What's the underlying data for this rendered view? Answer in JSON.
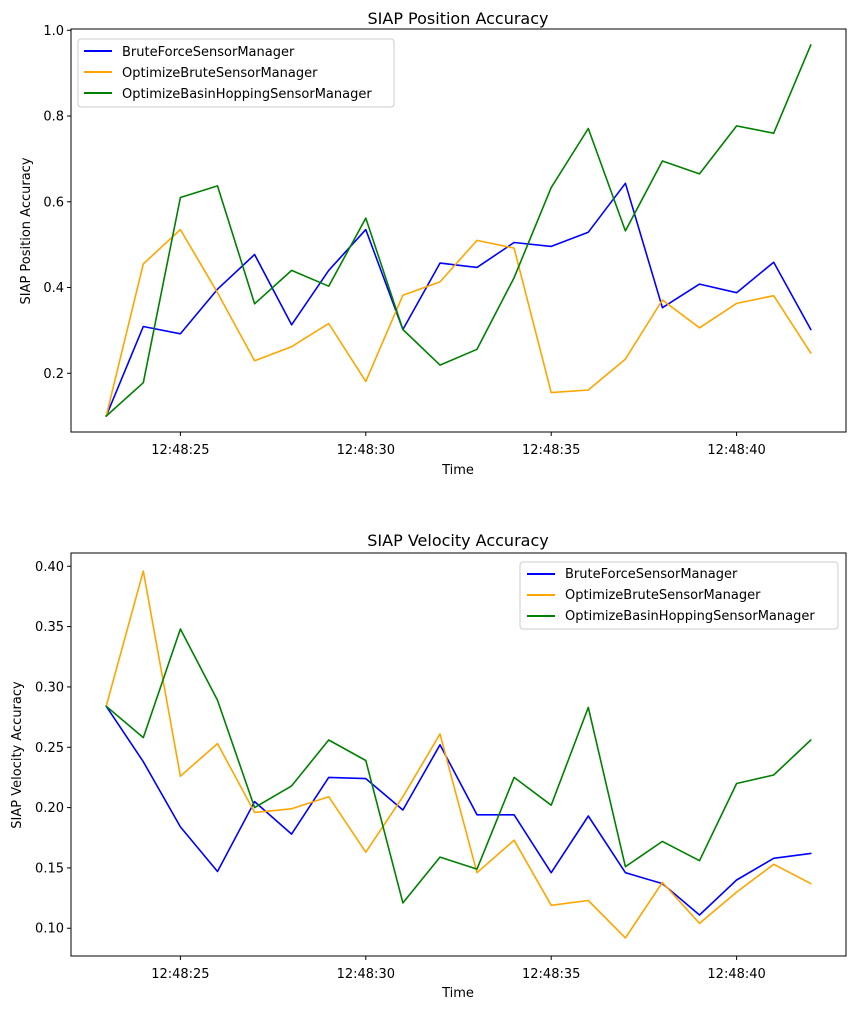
{
  "chart_data": [
    {
      "type": "line",
      "title": "SIAP Position Accuracy",
      "xlabel": "Time",
      "ylabel": "SIAP Position Accuracy",
      "x": [
        "12:48:23",
        "12:48:24",
        "12:48:25",
        "12:48:26",
        "12:48:27",
        "12:48:28",
        "12:48:29",
        "12:48:30",
        "12:48:31",
        "12:48:32",
        "12:48:33",
        "12:48:34",
        "12:48:35",
        "12:48:36",
        "12:48:37",
        "12:48:38",
        "12:48:39",
        "12:48:40",
        "12:48:41",
        "12:48:42"
      ],
      "xticks": [
        "12:48:25",
        "12:48:30",
        "12:48:35",
        "12:48:40"
      ],
      "xlim": [
        "12:48:22.05",
        "12:48:42.95"
      ],
      "ylim": [
        0.063,
        1.003
      ],
      "yticks": [
        0.2,
        0.4,
        0.6,
        0.8,
        1.0
      ],
      "yticklabels": [
        "0.2",
        "0.4",
        "0.6",
        "0.8",
        "1.0"
      ],
      "grid": false,
      "legend": "upper left",
      "series": [
        {
          "name": "BruteForceSensorManager",
          "color": "#0000ff",
          "values": [
            0.1,
            0.309,
            0.292,
            0.396,
            0.477,
            0.313,
            0.44,
            0.535,
            0.302,
            0.457,
            0.447,
            0.505,
            0.496,
            0.529,
            0.643,
            0.353,
            0.408,
            0.388,
            0.459,
            0.302
          ]
        },
        {
          "name": "OptimizeBruteSensorManager",
          "color": "#ffa500",
          "values": [
            0.1,
            0.455,
            0.535,
            0.388,
            0.229,
            0.262,
            0.316,
            0.181,
            0.382,
            0.413,
            0.51,
            0.492,
            0.155,
            0.161,
            0.233,
            0.371,
            0.306,
            0.363,
            0.381,
            0.247
          ]
        },
        {
          "name": "OptimizeBasinHoppingSensorManager",
          "color": "#008000",
          "values": [
            0.1,
            0.178,
            0.61,
            0.637,
            0.362,
            0.44,
            0.403,
            0.562,
            0.302,
            0.219,
            0.256,
            0.423,
            0.633,
            0.771,
            0.532,
            0.695,
            0.665,
            0.777,
            0.76,
            0.966
          ]
        }
      ]
    },
    {
      "type": "line",
      "title": "SIAP Velocity Accuracy",
      "xlabel": "Time",
      "ylabel": "SIAP Velocity Accuracy",
      "x": [
        "12:48:23",
        "12:48:24",
        "12:48:25",
        "12:48:26",
        "12:48:27",
        "12:48:28",
        "12:48:29",
        "12:48:30",
        "12:48:31",
        "12:48:32",
        "12:48:33",
        "12:48:34",
        "12:48:35",
        "12:48:36",
        "12:48:37",
        "12:48:38",
        "12:48:39",
        "12:48:40",
        "12:48:41",
        "12:48:42"
      ],
      "xticks": [
        "12:48:25",
        "12:48:30",
        "12:48:35",
        "12:48:40"
      ],
      "xlim": [
        "12:48:22.05",
        "12:48:42.95"
      ],
      "ylim": [
        0.077,
        0.411
      ],
      "yticks": [
        0.1,
        0.15,
        0.2,
        0.25,
        0.3,
        0.35,
        0.4
      ],
      "yticklabels": [
        "0.10",
        "0.15",
        "0.20",
        "0.25",
        "0.30",
        "0.35",
        "0.40"
      ],
      "grid": false,
      "legend": "upper right",
      "series": [
        {
          "name": "BruteForceSensorManager",
          "color": "#0000ff",
          "values": [
            0.284,
            0.238,
            0.184,
            0.147,
            0.205,
            0.178,
            0.225,
            0.224,
            0.198,
            0.252,
            0.194,
            0.194,
            0.146,
            0.193,
            0.146,
            0.137,
            0.111,
            0.14,
            0.158,
            0.162
          ]
        },
        {
          "name": "OptimizeBruteSensorManager",
          "color": "#ffa500",
          "values": [
            0.284,
            0.396,
            0.226,
            0.253,
            0.196,
            0.199,
            0.209,
            0.163,
            0.209,
            0.261,
            0.146,
            0.173,
            0.119,
            0.123,
            0.092,
            0.138,
            0.104,
            0.13,
            0.153,
            0.137
          ]
        },
        {
          "name": "OptimizeBasinHoppingSensorManager",
          "color": "#008000",
          "values": [
            0.284,
            0.258,
            0.348,
            0.289,
            0.2,
            0.218,
            0.256,
            0.239,
            0.121,
            0.159,
            0.149,
            0.225,
            0.202,
            0.283,
            0.151,
            0.172,
            0.156,
            0.22,
            0.227,
            0.256
          ]
        }
      ]
    }
  ]
}
